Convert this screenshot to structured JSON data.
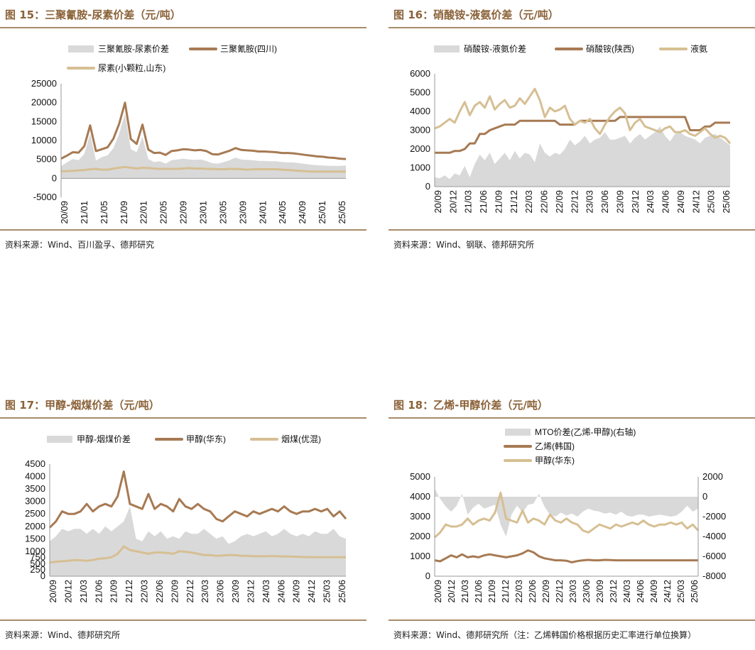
{
  "colors": {
    "gray": "#d9d9d9",
    "brown": "#a77a53",
    "tan": "#d6bf93",
    "title": "#8b6239"
  },
  "panels": [
    {
      "id": "p15",
      "title": "图 15：三聚氰胺-尿素价差（元/吨）",
      "source": "资料来源：Wind、百川盈孚、德邦研究",
      "chart_data": {
        "type": "line",
        "ylim": [
          -5000,
          25000
        ],
        "yticks": [
          "25000",
          "20000",
          "15000",
          "10000",
          "5000",
          "0",
          "-5000"
        ],
        "xticks": [
          "20/09",
          "21/01",
          "21/05",
          "21/09",
          "22/01",
          "22/05",
          "22/09",
          "23/01",
          "23/05",
          "23/09",
          "24/01",
          "24/05",
          "24/09",
          "25/01",
          "25/05"
        ],
        "legend": [
          {
            "name": "三聚氰胺-尿素价差",
            "kind": "area",
            "color": "gray"
          },
          {
            "name": "三聚氰胺(四川)",
            "kind": "line",
            "color": "brown"
          },
          {
            "name": "尿素(小颗粒,山东)",
            "kind": "line",
            "color": "tan"
          }
        ],
        "series": [
          {
            "name": "三聚氰胺-尿素价差",
            "kind": "area",
            "axis": "left",
            "values": [
              3200,
              4200,
              5100,
              4800,
              6500,
              11800,
              4700,
              5600,
              6100,
              8000,
              11800,
              17100,
              7700,
              6900,
              11000,
              5100,
              4300,
              4500,
              3900,
              4800,
              5000,
              5200,
              5000,
              4900,
              5000,
              4600,
              4000,
              3900,
              4300,
              4800,
              5500,
              5000,
              4900,
              4800,
              4600,
              4600,
              4500,
              4500,
              4300,
              4200,
              4200,
              4000,
              3800,
              3600,
              3500,
              3400,
              3300,
              3300,
              3300,
              3400
            ]
          },
          {
            "name": "三聚氰胺(四川)",
            "kind": "line",
            "axis": "left",
            "values": [
              5200,
              6000,
              6900,
              6800,
              8500,
              14000,
              7200,
              7700,
              8200,
              10500,
              14400,
              20000,
              10400,
              9100,
              14200,
              7600,
              6700,
              6800,
              6200,
              7200,
              7400,
              7700,
              7600,
              7400,
              7500,
              7200,
              6400,
              6300,
              6800,
              7300,
              8000,
              7500,
              7400,
              7300,
              7100,
              7100,
              7000,
              6900,
              6700,
              6700,
              6600,
              6400,
              6200,
              6000,
              5800,
              5700,
              5500,
              5400,
              5200,
              5100
            ]
          },
          {
            "name": "尿素(小颗粒,山东)",
            "kind": "line",
            "axis": "left",
            "values": [
              1900,
              1900,
              2000,
              2100,
              2200,
              2400,
              2500,
              2300,
              2300,
              2600,
              2800,
              3000,
              2800,
              2600,
              2800,
              2700,
              2600,
              2500,
              2500,
              2500,
              2500,
              2600,
              2700,
              2600,
              2600,
              2500,
              2500,
              2400,
              2400,
              2500,
              2500,
              2400,
              2300,
              2400,
              2400,
              2400,
              2400,
              2400,
              2300,
              2200,
              2100,
              2000,
              1900,
              1800,
              1800,
              1800,
              1800,
              1800,
              1800,
              1800
            ]
          }
        ]
      }
    },
    {
      "id": "p16",
      "title": "图 16：硝酸铵-液氨价差（元/吨）",
      "source": "资料来源：Wind、钢联、德邦研究所",
      "chart_data": {
        "type": "line",
        "ylim": [
          0,
          6000
        ],
        "yticks": [
          "6000",
          "5000",
          "4000",
          "3000",
          "2000",
          "1000",
          "0"
        ],
        "xticks": [
          "20/09",
          "20/12",
          "21/03",
          "21/06",
          "21/09",
          "21/12",
          "22/03",
          "22/06",
          "22/09",
          "22/12",
          "23/03",
          "23/06",
          "23/09",
          "23/12",
          "24/03",
          "24/06",
          "24/09",
          "24/12",
          "25/03",
          "25/06"
        ],
        "legend": [
          {
            "name": "硝酸铵-液氨价差",
            "kind": "area",
            "color": "gray"
          },
          {
            "name": "硝酸铵(陕西)",
            "kind": "line",
            "color": "brown"
          },
          {
            "name": "液氨",
            "kind": "line",
            "color": "tan"
          }
        ],
        "series": [
          {
            "name": "硝酸铵-液氨价差",
            "kind": "area",
            "axis": "left",
            "values": [
              500,
              450,
              600,
              400,
              700,
              600,
              1100,
              500,
              1200,
              1700,
              1400,
              1800,
              1200,
              1500,
              1800,
              1400,
              1900,
              1500,
              1800,
              1700,
              1300,
              2300,
              1800,
              1600,
              1800,
              1700,
              2000,
              2500,
              2200,
              2400,
              2700,
              2300,
              2500,
              2600,
              2900,
              2500,
              2500,
              2600,
              2700,
              2300,
              2600,
              2800,
              2500,
              2700,
              2900,
              3200,
              2700,
              2400,
              2800,
              2900,
              2700,
              2600,
              2500,
              2300,
              2600,
              2700,
              2800,
              2600,
              2400,
              2200
            ]
          },
          {
            "name": "硝酸铵(陕西)",
            "kind": "line",
            "axis": "left",
            "values": [
              1800,
              1800,
              1800,
              1800,
              1900,
              1900,
              2000,
              2300,
              2300,
              2800,
              2800,
              3000,
              3100,
              3200,
              3300,
              3300,
              3300,
              3500,
              3500,
              3500,
              3500,
              3500,
              3500,
              3500,
              3500,
              3300,
              3300,
              3300,
              3300,
              3500,
              3500,
              3500,
              3500,
              3500,
              3500,
              3500,
              3500,
              3700,
              3700,
              3700,
              3700,
              3700,
              3700,
              3700,
              3700,
              3700,
              3700,
              3700,
              3700,
              3700,
              3700,
              3000,
              3000,
              3000,
              3200,
              3200,
              3400,
              3400,
              3400,
              3400
            ]
          },
          {
            "name": "液氨",
            "kind": "line",
            "axis": "left",
            "values": [
              3100,
              3200,
              3400,
              3600,
              3400,
              4000,
              4500,
              3800,
              4300,
              4500,
              4200,
              4800,
              4100,
              4400,
              4600,
              4200,
              4300,
              4700,
              4400,
              4800,
              5200,
              4600,
              3700,
              4200,
              4000,
              4100,
              4300,
              3600,
              3300,
              3500,
              3400,
              3600,
              3100,
              2800,
              3300,
              3700,
              4000,
              4200,
              3900,
              3000,
              3400,
              3600,
              3200,
              3100,
              3000,
              2900,
              3100,
              3200,
              2900,
              2900,
              3000,
              2800,
              2700,
              2900,
              3100,
              2800,
              2600,
              2700,
              2600,
              2300
            ]
          }
        ]
      }
    },
    {
      "id": "p17",
      "title": "图 17：甲醇-烟煤价差（元/吨）",
      "source": "资料来源：Wind、德邦研究所",
      "chart_data": {
        "type": "line",
        "ylim": [
          0,
          4500
        ],
        "yticks": [
          "4500",
          "4000",
          "3500",
          "3000",
          "2500",
          "2000",
          "1500",
          "1000",
          "750",
          "500",
          "250",
          "0"
        ],
        "ytick_values": [
          4500,
          4000,
          3500,
          3000,
          2500,
          2000,
          1500,
          1000,
          750,
          500,
          250,
          0
        ],
        "xticks": [
          "20/09",
          "20/12",
          "21/03",
          "21/06",
          "21/09",
          "21/12",
          "22/03",
          "22/06",
          "22/09",
          "22/12",
          "23/03",
          "23/06",
          "23/09",
          "23/12",
          "24/03",
          "24/06",
          "24/09",
          "24/12",
          "25/03",
          "25/06"
        ],
        "legend": [
          {
            "name": "甲醇-烟煤价差",
            "kind": "area",
            "color": "gray"
          },
          {
            "name": "甲醇(华东)",
            "kind": "line",
            "color": "brown"
          },
          {
            "name": "烟煤(优混)",
            "kind": "line",
            "color": "tan"
          }
        ],
        "series": [
          {
            "name": "甲醇-烟煤价差",
            "kind": "area",
            "axis": "left",
            "values": [
              1400,
              1600,
              1900,
              1800,
              1900,
              1900,
              1700,
              1900,
              1700,
              2000,
              1800,
              2000,
              2200,
              2800,
              1500,
              1400,
              1800,
              1600,
              1800,
              1500,
              1600,
              1500,
              1800,
              1700,
              1700,
              1900,
              1700,
              1500,
              1600,
              1300,
              1400,
              1600,
              1700,
              1600,
              1700,
              1800,
              1600,
              1700,
              1900,
              1700,
              1600,
              1700,
              1600,
              1800,
              1700,
              1700,
              1900,
              1600,
              1500
            ]
          },
          {
            "name": "甲醇(华东)",
            "kind": "line",
            "axis": "left",
            "values": [
              1950,
              2200,
              2600,
              2500,
              2500,
              2600,
              2900,
              2600,
              2800,
              2900,
              2800,
              3200,
              4200,
              2900,
              2800,
              2700,
              3300,
              2700,
              2900,
              2800,
              2600,
              3100,
              2800,
              2700,
              2900,
              2700,
              2600,
              2300,
              2200,
              2400,
              2600,
              2500,
              2400,
              2600,
              2500,
              2600,
              2700,
              2600,
              2800,
              2600,
              2500,
              2600,
              2600,
              2700,
              2600,
              2700,
              2400,
              2600,
              2300
            ]
          },
          {
            "name": "烟煤(优混)",
            "kind": "line",
            "axis": "left",
            "values": [
              550,
              580,
              600,
              620,
              650,
              640,
              620,
              650,
              700,
              720,
              760,
              900,
              1200,
              1050,
              1000,
              950,
              900,
              950,
              950,
              930,
              900,
              1000,
              980,
              950,
              900,
              850,
              850,
              820,
              830,
              850,
              850,
              820,
              820,
              800,
              800,
              800,
              810,
              800,
              790,
              790,
              780,
              770,
              770,
              760,
              760,
              760,
              760,
              760,
              760
            ]
          }
        ]
      }
    },
    {
      "id": "p18",
      "title": "图 18：乙烯-甲醇价差（元/吨）",
      "source": "资料来源：Wind、德邦研究所（注：乙烯韩国价格根据历史汇率进行单位换算）",
      "chart_data": {
        "type": "line",
        "ylim": [
          0,
          5000
        ],
        "y2lim": [
          -8000,
          2000
        ],
        "yticks": [
          "5000",
          "4000",
          "3000",
          "2000",
          "1000",
          "0"
        ],
        "y2ticks": [
          "2000",
          "0",
          "-2000",
          "-4000",
          "-6000",
          "-8000"
        ],
        "xticks": [
          "20/09",
          "20/12",
          "21/03",
          "21/06",
          "21/09",
          "21/12",
          "22/03",
          "22/06",
          "22/09",
          "22/12",
          "23/03",
          "23/06",
          "23/09",
          "23/12",
          "24/03",
          "24/06",
          "24/09",
          "24/12",
          "25/03",
          "25/06"
        ],
        "legend": [
          {
            "name": "MTO价差(乙烯-甲醇)(右轴)",
            "kind": "area",
            "color": "gray"
          },
          {
            "name": "乙烯(韩国)",
            "kind": "line",
            "color": "brown"
          },
          {
            "name": "甲醇(华东)",
            "kind": "line",
            "color": "tan"
          }
        ],
        "series": [
          {
            "name": "MTO价差(乙烯-甲醇)(右轴)",
            "kind": "area",
            "axis": "right",
            "values": [
              800,
              -200,
              -1000,
              -1500,
              -900,
              300,
              -1800,
              -1100,
              -700,
              -1200,
              -1000,
              -800,
              -2800,
              -4000,
              -1800,
              -900,
              -1600,
              -800,
              -700,
              300,
              -1000,
              -1800,
              -2000,
              -1600,
              -1900,
              -1700,
              -2000,
              -1500,
              -1200,
              -1400,
              -1500,
              -1700,
              -1600,
              -1800,
              -1500,
              -1900,
              -2000,
              -1800,
              -1800,
              -2000,
              -1900,
              -1800,
              -1900,
              -2000,
              -1900,
              -1500,
              -900,
              -1500,
              -1200
            ]
          },
          {
            "name": "乙烯(韩国)",
            "kind": "line",
            "axis": "left",
            "values": [
              800,
              750,
              900,
              1050,
              950,
              1100,
              950,
              1000,
              950,
              1050,
              1100,
              1050,
              1000,
              950,
              1000,
              1050,
              1150,
              1300,
              1200,
              1000,
              900,
              850,
              800,
              800,
              780,
              700,
              760,
              800,
              820,
              800,
              800,
              820,
              810,
              800,
              800,
              800,
              800,
              800,
              800,
              800,
              800,
              800,
              800,
              800,
              800,
              800,
              800,
              800,
              800
            ]
          },
          {
            "name": "甲醇(华东)",
            "kind": "line",
            "axis": "left",
            "values": [
              1950,
              2200,
              2600,
              2500,
              2500,
              2600,
              2900,
              2600,
              2800,
              2900,
              2800,
              3200,
              4200,
              2900,
              2800,
              2700,
              3300,
              2700,
              2900,
              2800,
              2600,
              3100,
              2800,
              2700,
              2900,
              2700,
              2600,
              2300,
              2200,
              2400,
              2600,
              2500,
              2400,
              2600,
              2500,
              2600,
              2700,
              2600,
              2800,
              2600,
              2500,
              2600,
              2600,
              2700,
              2600,
              2700,
              2400,
              2600,
              2300
            ]
          }
        ]
      }
    }
  ]
}
